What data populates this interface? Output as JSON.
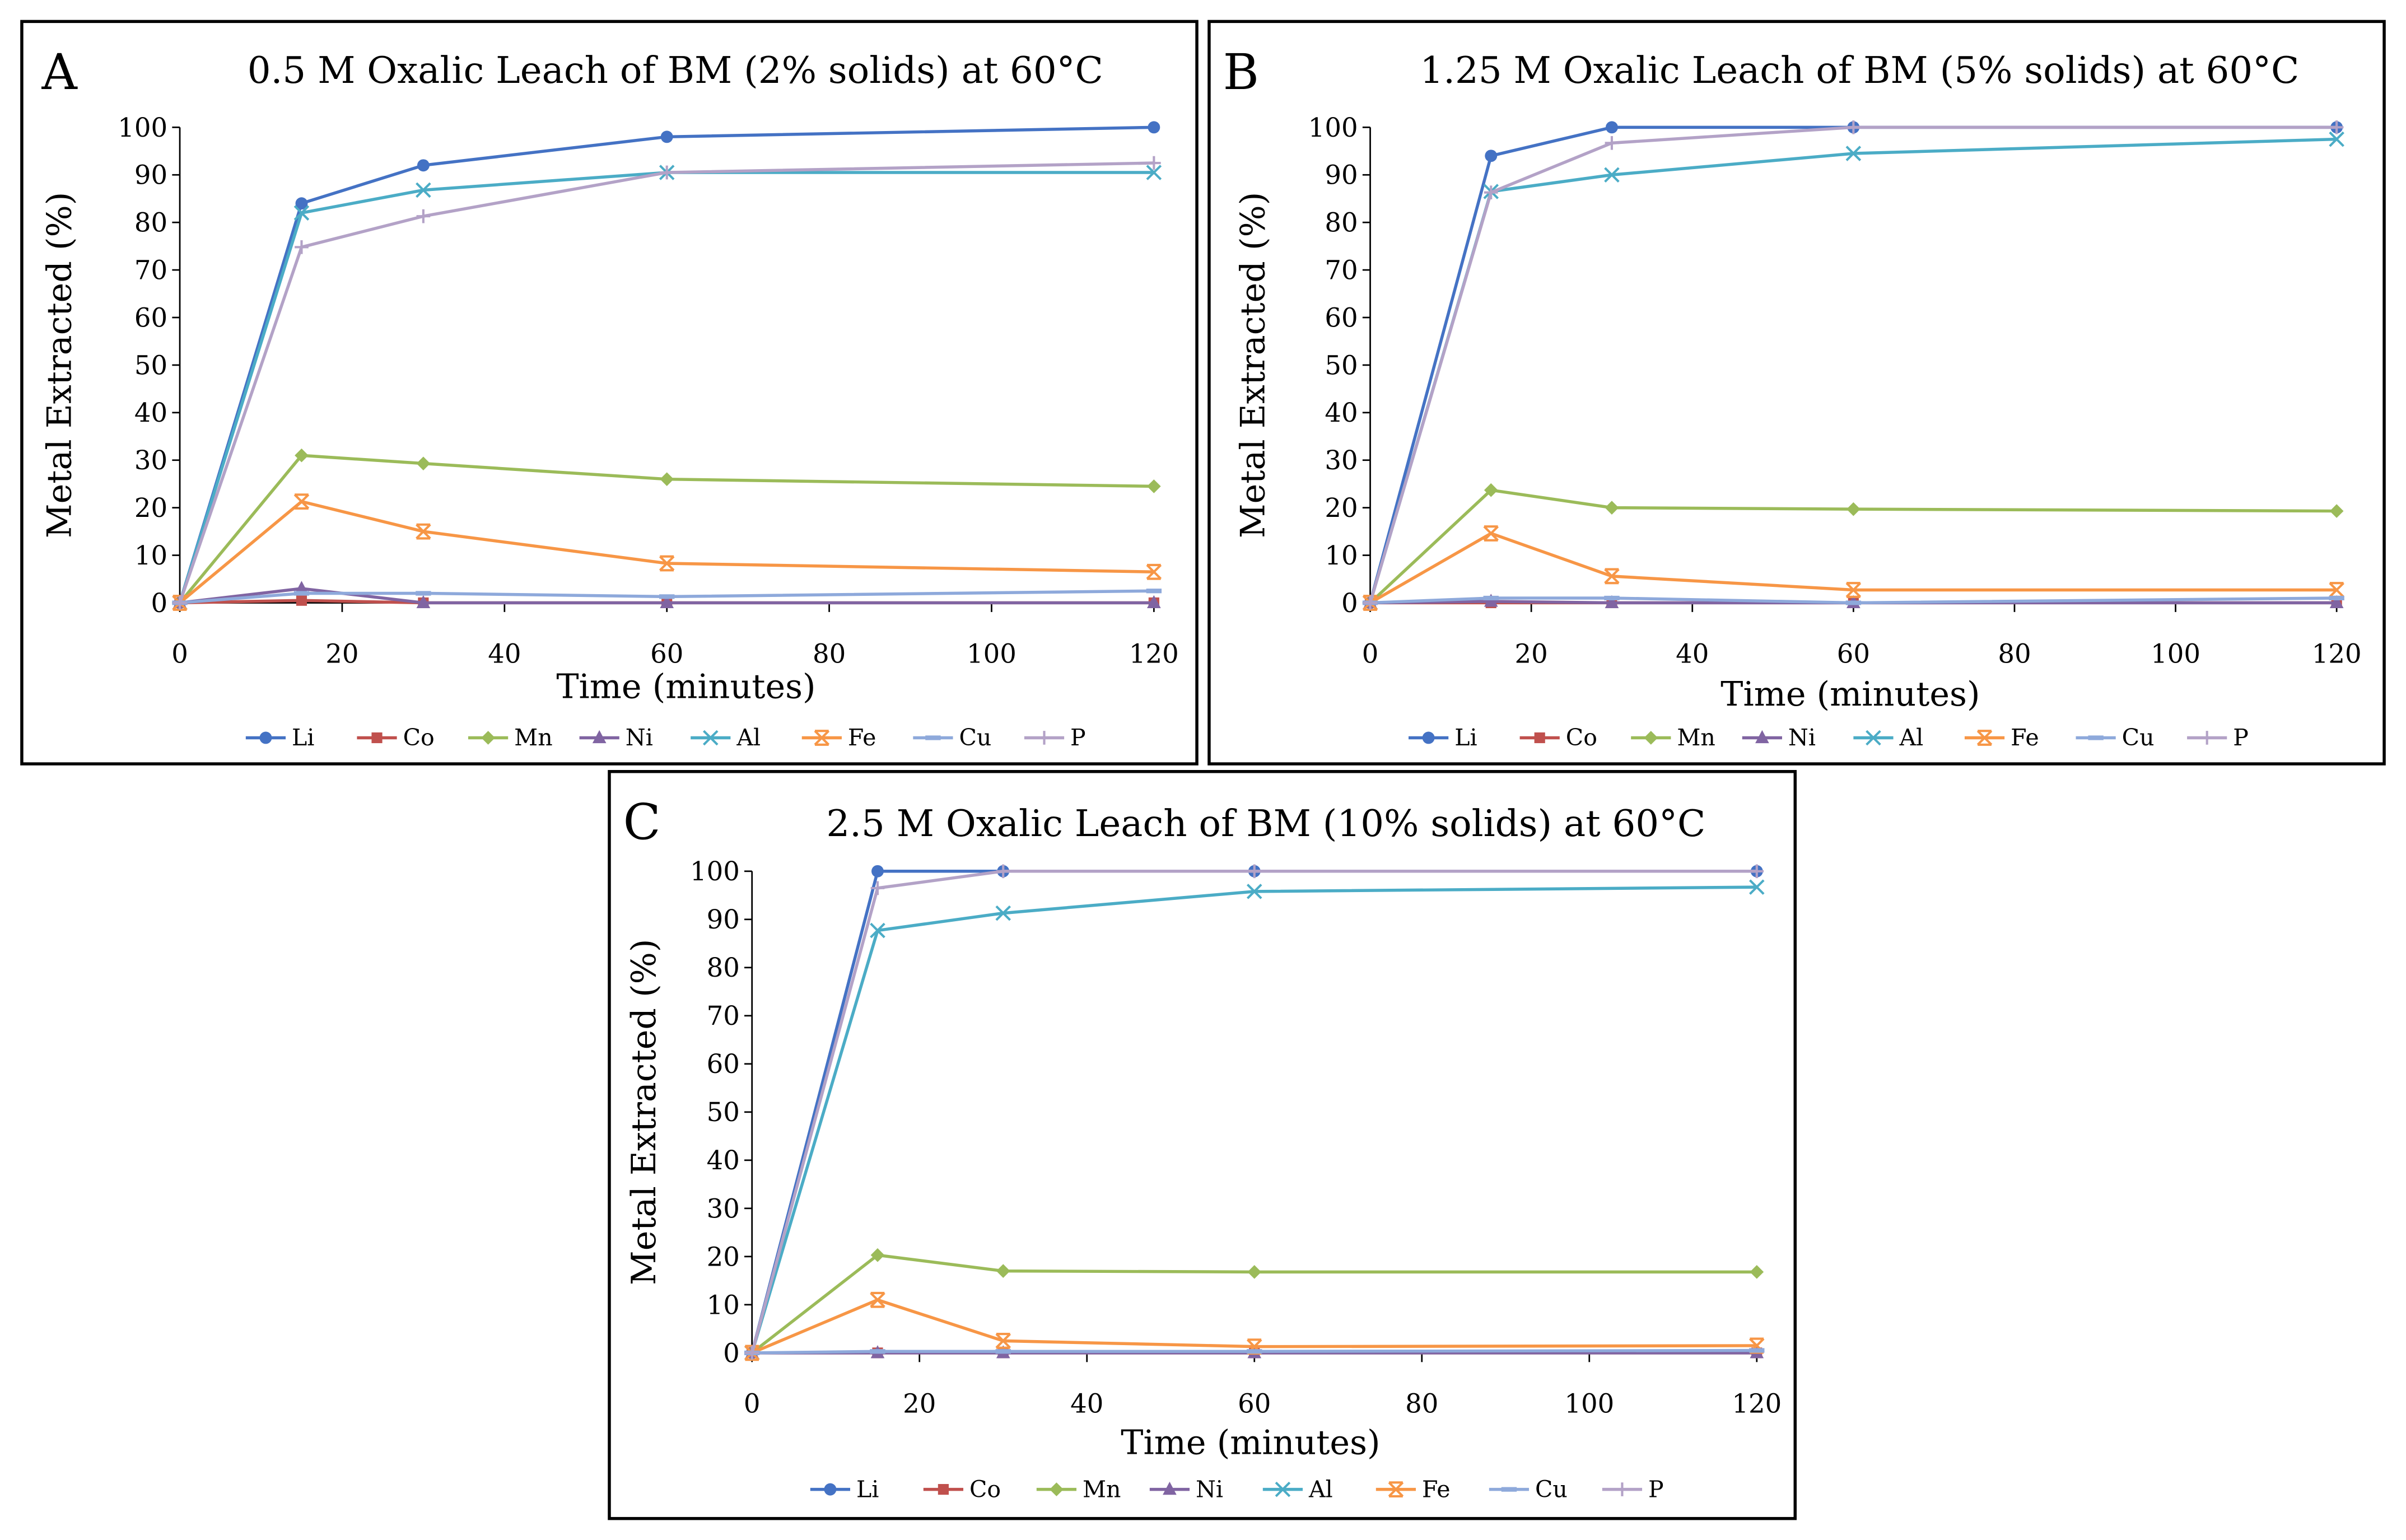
{
  "chart_data": [
    {
      "panel_letter": "A",
      "type": "line",
      "title": "0.5 M Oxalic Leach of BM (2% solids) at 60°C",
      "xlabel": "Time (minutes)",
      "ylabel": "Metal Extracted (%)",
      "xlim": [
        0,
        120
      ],
      "ylim": [
        0,
        100
      ],
      "xticks": [
        0,
        20,
        40,
        60,
        80,
        100,
        120
      ],
      "yticks": [
        0,
        10,
        20,
        30,
        40,
        50,
        60,
        70,
        80,
        90,
        100
      ],
      "x": [
        0,
        15,
        30,
        60,
        120
      ],
      "legend_position": "bottom",
      "series": [
        {
          "name": "Li",
          "values": [
            0,
            84,
            92,
            98,
            100
          ]
        },
        {
          "name": "Co",
          "values": [
            0,
            0.5,
            0,
            0,
            0
          ]
        },
        {
          "name": "Mn",
          "values": [
            0,
            31,
            29.3,
            26,
            24.5
          ]
        },
        {
          "name": "Ni",
          "values": [
            0,
            3,
            0,
            0,
            0
          ]
        },
        {
          "name": "Al",
          "values": [
            0,
            82,
            86.8,
            90.5,
            90.5
          ]
        },
        {
          "name": "Fe",
          "values": [
            0,
            21.3,
            15,
            8.3,
            6.5
          ]
        },
        {
          "name": "Cu",
          "values": [
            0,
            2,
            2,
            1.3,
            2.5
          ]
        },
        {
          "name": "P",
          "values": [
            0,
            74.8,
            81.3,
            90.5,
            92.5
          ]
        }
      ]
    },
    {
      "panel_letter": "B",
      "type": "line",
      "title": "1.25 M Oxalic Leach of BM (5% solids) at 60°C",
      "xlabel": "Time (minutes)",
      "ylabel": "Metal Extracted (%)",
      "xlim": [
        0,
        120
      ],
      "ylim": [
        0,
        100
      ],
      "xticks": [
        0,
        20,
        40,
        60,
        80,
        100,
        120
      ],
      "yticks": [
        0,
        10,
        20,
        30,
        40,
        50,
        60,
        70,
        80,
        90,
        100
      ],
      "x": [
        0,
        15,
        30,
        60,
        120
      ],
      "legend_position": "bottom",
      "series": [
        {
          "name": "Li",
          "values": [
            0,
            94,
            100,
            100,
            100
          ]
        },
        {
          "name": "Co",
          "values": [
            0,
            0,
            0,
            0,
            0
          ]
        },
        {
          "name": "Mn",
          "values": [
            0,
            23.7,
            20,
            19.7,
            19.3
          ]
        },
        {
          "name": "Ni",
          "values": [
            0,
            0.3,
            0,
            0,
            0
          ]
        },
        {
          "name": "Al",
          "values": [
            0,
            86.5,
            90,
            94.5,
            97.5
          ]
        },
        {
          "name": "Fe",
          "values": [
            0,
            14.6,
            5.6,
            2.7,
            2.7
          ]
        },
        {
          "name": "Cu",
          "values": [
            0,
            1,
            1,
            0,
            1
          ]
        },
        {
          "name": "P",
          "values": [
            0,
            86.3,
            96.7,
            100,
            100
          ]
        }
      ]
    },
    {
      "panel_letter": "C",
      "type": "line",
      "title": "2.5 M Oxalic Leach of BM (10% solids) at 60°C",
      "xlabel": "Time (minutes)",
      "ylabel": "Metal Extracted (%)",
      "xlim": [
        0,
        120
      ],
      "ylim": [
        0,
        100
      ],
      "xticks": [
        0,
        20,
        40,
        60,
        80,
        100,
        120
      ],
      "yticks": [
        0,
        10,
        20,
        30,
        40,
        50,
        60,
        70,
        80,
        90,
        100
      ],
      "x": [
        0,
        15,
        30,
        60,
        120
      ],
      "legend_position": "bottom",
      "series": [
        {
          "name": "Li",
          "values": [
            0,
            100,
            100,
            100,
            100
          ]
        },
        {
          "name": "Co",
          "values": [
            0,
            0,
            0,
            0,
            0
          ]
        },
        {
          "name": "Mn",
          "values": [
            0,
            20.3,
            17,
            16.8,
            16.8
          ]
        },
        {
          "name": "Ni",
          "values": [
            0,
            0,
            0,
            0,
            0
          ]
        },
        {
          "name": "Al",
          "values": [
            0,
            87.7,
            91.3,
            95.8,
            96.7
          ]
        },
        {
          "name": "Fe",
          "values": [
            0,
            11,
            2.5,
            1.3,
            1.5
          ]
        },
        {
          "name": "Cu",
          "values": [
            0,
            0.3,
            0.3,
            0.3,
            0.5
          ]
        },
        {
          "name": "P",
          "values": [
            0,
            96.5,
            100,
            100,
            100
          ]
        }
      ]
    }
  ],
  "series_style": {
    "Li": {
      "color": "#4472C4",
      "marker": "circle"
    },
    "Co": {
      "color": "#C0504D",
      "marker": "square"
    },
    "Mn": {
      "color": "#9BBB59",
      "marker": "diamond"
    },
    "Ni": {
      "color": "#8064A2",
      "marker": "triangle"
    },
    "Al": {
      "color": "#4BACC6",
      "marker": "x"
    },
    "Fe": {
      "color": "#F79646",
      "marker": "star-x"
    },
    "Cu": {
      "color": "#8EA9DB",
      "marker": "dash"
    },
    "P": {
      "color": "#B3A2C7",
      "marker": "plus"
    }
  }
}
